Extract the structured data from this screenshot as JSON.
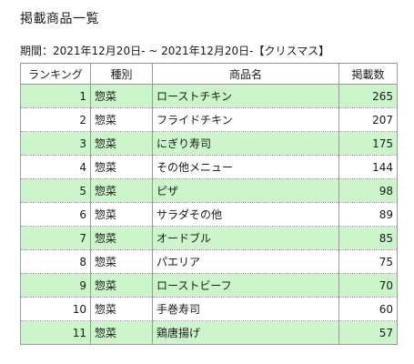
{
  "page": {
    "title": "掲載商品一覧",
    "period": "期間：2021年12月20日- ~ 2021年12月20日-【クリスマス】"
  },
  "table": {
    "headers": [
      "ランキング",
      "種別",
      "商品名",
      "掲載数"
    ],
    "rows": [
      {
        "rank": "1",
        "category": "惣菜",
        "name": "ローストチキン",
        "count": "265"
      },
      {
        "rank": "2",
        "category": "惣菜",
        "name": "フライドチキン",
        "count": "207"
      },
      {
        "rank": "3",
        "category": "惣菜",
        "name": "にぎり寿司",
        "count": "175"
      },
      {
        "rank": "4",
        "category": "惣菜",
        "name": "その他メニュー",
        "count": "144"
      },
      {
        "rank": "5",
        "category": "惣菜",
        "name": "ピザ",
        "count": "98"
      },
      {
        "rank": "6",
        "category": "惣菜",
        "name": "サラダその他",
        "count": "89"
      },
      {
        "rank": "7",
        "category": "惣菜",
        "name": "オードブル",
        "count": "85"
      },
      {
        "rank": "8",
        "category": "惣菜",
        "name": "パエリア",
        "count": "75"
      },
      {
        "rank": "9",
        "category": "惣菜",
        "name": "ローストビーフ",
        "count": "70"
      },
      {
        "rank": "10",
        "category": "惣菜",
        "name": "手巻寿司",
        "count": "60"
      },
      {
        "rank": "11",
        "category": "惣菜",
        "name": "鶏唐揚げ",
        "count": "57"
      }
    ]
  },
  "colors": {
    "stripe": "#ccf5cc",
    "border": "#9a9a9a"
  }
}
